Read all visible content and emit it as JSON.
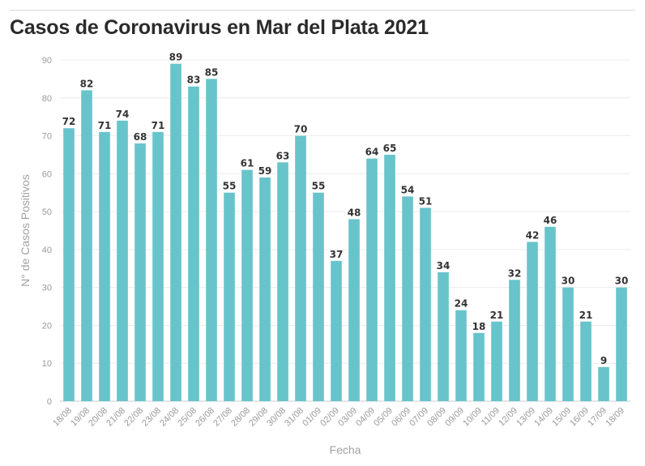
{
  "chart_data": {
    "type": "bar",
    "title": "Casos de Coronavirus en Mar del Plata 2021",
    "xlabel": "Fecha",
    "ylabel": "N° de Casos Positivos",
    "ylim": [
      0,
      90
    ],
    "yticks": [
      0,
      10,
      20,
      30,
      40,
      50,
      60,
      70,
      80,
      90
    ],
    "grid": true,
    "data_labels": true,
    "bar_color": "#68c4cb",
    "categories": [
      "18/08",
      "19/08",
      "20/08",
      "21/08",
      "22/08",
      "23/08",
      "24/08",
      "25/08",
      "26/08",
      "27/08",
      "28/08",
      "29/08",
      "30/08",
      "31/08",
      "01/09",
      "02/09",
      "03/09",
      "04/09",
      "05/09",
      "06/09",
      "07/09",
      "08/09",
      "09/09",
      "10/09",
      "11/09",
      "12/09",
      "13/09",
      "14/09",
      "15/09",
      "16/09",
      "17/09",
      "18/09"
    ],
    "values": [
      72,
      82,
      71,
      74,
      68,
      71,
      89,
      83,
      85,
      55,
      61,
      59,
      63,
      70,
      55,
      37,
      48,
      64,
      65,
      54,
      51,
      34,
      24,
      18,
      21,
      32,
      42,
      46,
      30,
      21,
      9,
      30
    ]
  }
}
